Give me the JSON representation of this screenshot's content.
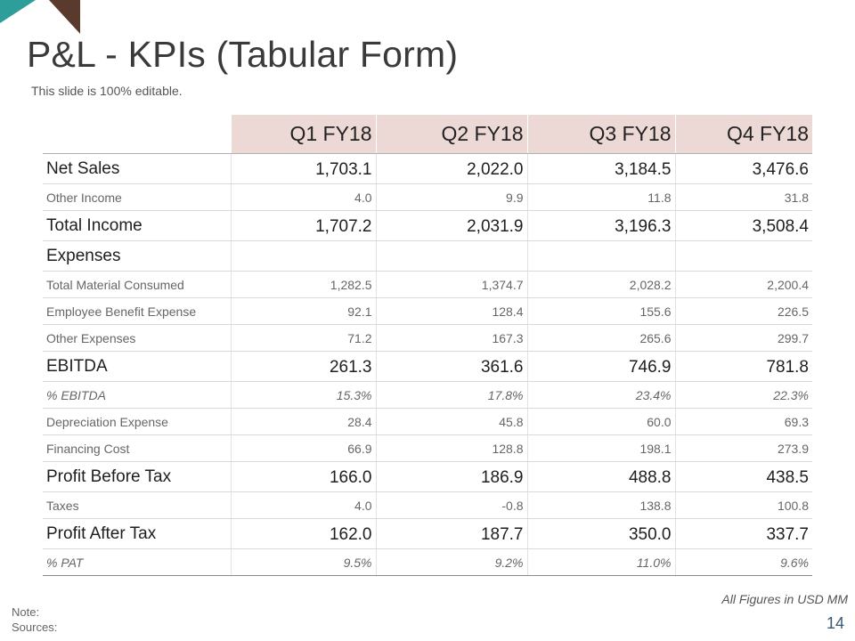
{
  "slide": {
    "title": "P&L - KPIs (Tabular Form)",
    "subtitle": "This slide is 100% editable.",
    "figures_note": "All Figures in USD MM",
    "note_label": "Note:",
    "sources_label": "Sources:",
    "page_number": "14"
  },
  "colors": {
    "header_fill": "#ecd9d6",
    "corner_teal": "#2e9e9a",
    "corner_brown": "#5b3a2e",
    "page_number": "#3b5873"
  },
  "table": {
    "columns": [
      "Q1 FY18",
      "Q2 FY18",
      "Q3 FY18",
      "Q4 FY18"
    ],
    "rows": [
      {
        "label": "Net Sales",
        "values": [
          "1,703.1",
          "2,022.0",
          "3,184.5",
          "3,476.6"
        ]
      },
      {
        "label": "Other Income",
        "values": [
          "4.0",
          "9.9",
          "11.8",
          "31.8"
        ]
      },
      {
        "label": "Total Income",
        "values": [
          "1,707.2",
          "2,031.9",
          "3,196.3",
          "3,508.4"
        ]
      },
      {
        "label": "Expenses",
        "values": [
          "",
          "",
          "",
          ""
        ]
      },
      {
        "label": "Total Material Consumed",
        "values": [
          "1,282.5",
          "1,374.7",
          "2,028.2",
          "2,200.4"
        ]
      },
      {
        "label": "Employee Benefit Expense",
        "values": [
          "92.1",
          "128.4",
          "155.6",
          "226.5"
        ]
      },
      {
        "label": "Other Expenses",
        "values": [
          "71.2",
          "167.3",
          "265.6",
          "299.7"
        ]
      },
      {
        "label": "EBITDA",
        "values": [
          "261.3",
          "361.6",
          "746.9",
          "781.8"
        ]
      },
      {
        "label": "% EBITDA",
        "values": [
          "15.3%",
          "17.8%",
          "23.4%",
          "22.3%"
        ]
      },
      {
        "label": "Depreciation Expense",
        "values": [
          "28.4",
          "45.8",
          "60.0",
          "69.3"
        ]
      },
      {
        "label": "Financing Cost",
        "values": [
          "66.9",
          "128.8",
          "198.1",
          "273.9"
        ]
      },
      {
        "label": "Profit Before Tax",
        "values": [
          "166.0",
          "186.9",
          "488.8",
          "438.5"
        ]
      },
      {
        "label": "Taxes",
        "values": [
          "4.0",
          "-0.8",
          "138.8",
          "100.8"
        ]
      },
      {
        "label": "Profit After Tax",
        "values": [
          "162.0",
          "187.7",
          "350.0",
          "337.7"
        ]
      },
      {
        "label": "% PAT",
        "values": [
          "9.5%",
          "9.2%",
          "11.0%",
          "9.6%"
        ]
      }
    ]
  }
}
